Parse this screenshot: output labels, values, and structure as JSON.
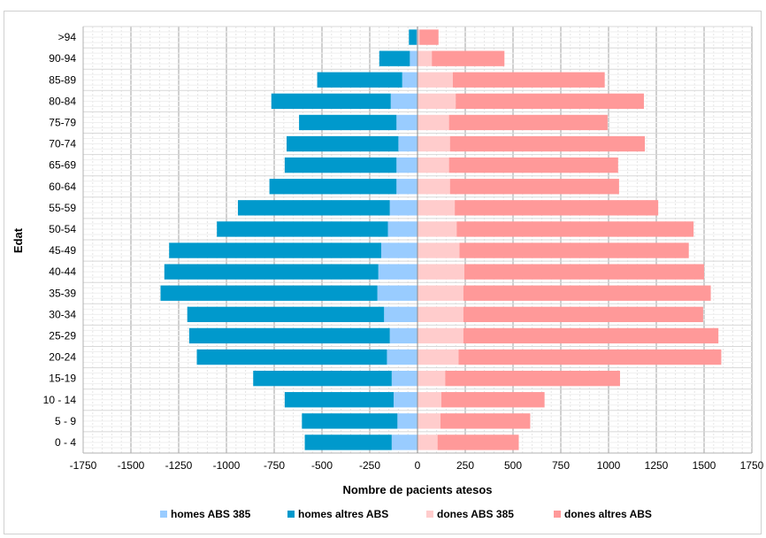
{
  "chart_data": {
    "type": "bar",
    "orientation": "horizontal",
    "stacked": true,
    "title": "",
    "xlabel": "Nombre de pacients atesos",
    "ylabel": "Edat",
    "xlim": [
      -1750,
      1750
    ],
    "xticks": [
      -1750,
      -1500,
      -1250,
      -1000,
      -750,
      -500,
      -250,
      0,
      250,
      500,
      750,
      1000,
      1250,
      1500,
      1750
    ],
    "grid": true,
    "legend_position": "bottom",
    "categories": [
      ">94",
      "90-94",
      "85-89",
      "80-84",
      "75-79",
      "70-74",
      "65-69",
      "60-64",
      "55-59",
      "50-54",
      "45-49",
      "40-44",
      "35-39",
      "30-34",
      "25-29",
      "20-24",
      "15-19",
      "10 - 14",
      "5 - 9",
      "0 - 4"
    ],
    "series": [
      {
        "name": "homes ABS 385",
        "color": "#99ccff",
        "side": "left",
        "values": [
          -5,
          -40,
          -80,
          -140,
          -110,
          -100,
          -110,
          -110,
          -145,
          -155,
          -190,
          -205,
          -210,
          -175,
          -145,
          -160,
          -135,
          -125,
          -105,
          -135
        ]
      },
      {
        "name": "homes altres ABS",
        "color": "#0099cc",
        "side": "left",
        "values": [
          -40,
          -160,
          -445,
          -625,
          -510,
          -585,
          -585,
          -665,
          -795,
          -895,
          -1110,
          -1120,
          -1135,
          -1030,
          -1050,
          -995,
          -725,
          -570,
          -500,
          -455
        ]
      },
      {
        "name": "dones ABS 385",
        "color": "#ffcccc",
        "side": "right",
        "values": [
          10,
          75,
          185,
          200,
          165,
          170,
          165,
          170,
          195,
          205,
          220,
          245,
          240,
          240,
          240,
          215,
          145,
          125,
          120,
          105
        ]
      },
      {
        "name": "dones altres ABS",
        "color": "#ff9999",
        "side": "right",
        "values": [
          100,
          380,
          795,
          985,
          830,
          1020,
          885,
          885,
          1065,
          1240,
          1200,
          1255,
          1295,
          1255,
          1335,
          1375,
          915,
          540,
          470,
          425
        ]
      }
    ]
  }
}
